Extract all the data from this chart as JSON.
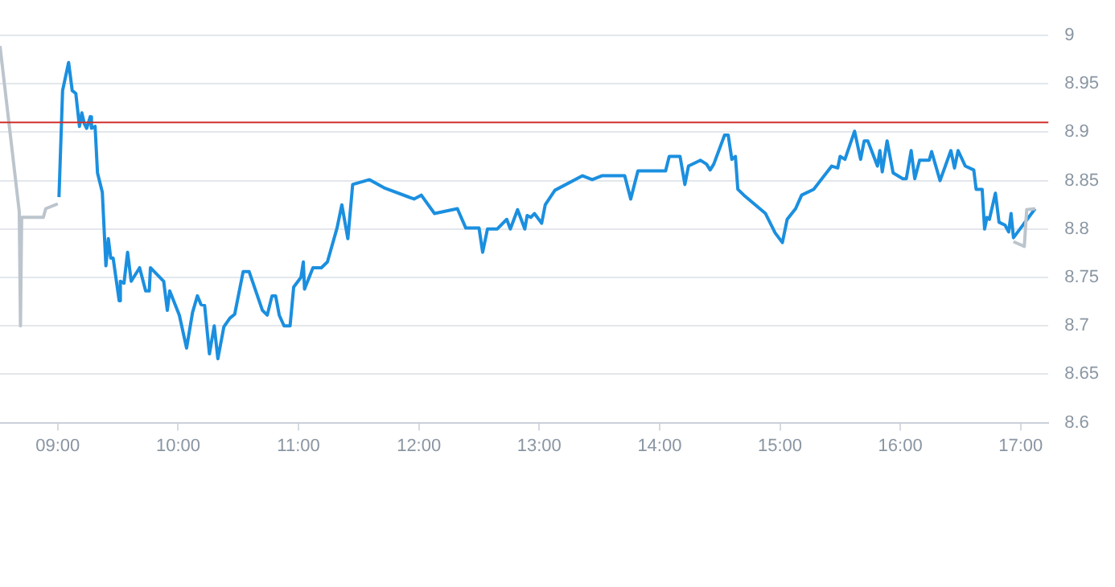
{
  "chart_data": {
    "type": "line",
    "xlim": [
      8.52,
      17.23
    ],
    "ylim": [
      8.6,
      9
    ],
    "xticks": [
      {
        "value": 9,
        "label": "09:00"
      },
      {
        "value": 10,
        "label": "10:00"
      },
      {
        "value": 11,
        "label": "11:00"
      },
      {
        "value": 12,
        "label": "12:00"
      },
      {
        "value": 13,
        "label": "13:00"
      },
      {
        "value": 14,
        "label": "14:00"
      },
      {
        "value": 15,
        "label": "15:00"
      },
      {
        "value": 16,
        "label": "16:00"
      },
      {
        "value": 17,
        "label": "17:00"
      }
    ],
    "yticks": [
      8.6,
      8.65,
      8.7,
      8.75,
      8.8,
      8.85,
      8.9,
      8.95,
      9
    ],
    "grid": "y",
    "legend": false,
    "marker": "none",
    "line_style": "solid",
    "ref_lines": [
      {
        "axis": "y",
        "value": 8.91,
        "color": "#d0312d"
      }
    ],
    "series": [
      {
        "color": "#bcc5cd",
        "x": [
          8.52,
          8.68,
          8.69,
          8.7,
          8.88,
          8.9,
          9.0,
          9.01,
          16.94,
          17.03,
          17.05,
          17.12
        ],
        "values": [
          8.989,
          8.818,
          8.7,
          8.812,
          8.812,
          8.821,
          8.826,
          null,
          8.787,
          8.782,
          8.82,
          8.821
        ]
      },
      {
        "color": "#1b8fdf",
        "x": [
          9.01,
          9.04,
          9.09,
          9.12,
          9.15,
          9.18,
          9.2,
          9.22,
          9.24,
          9.27,
          9.28,
          9.31,
          9.33,
          9.37,
          9.4,
          9.42,
          9.44,
          9.46,
          9.51,
          9.52,
          9.55,
          9.58,
          9.61,
          9.68,
          9.73,
          9.76,
          9.77,
          9.88,
          9.91,
          9.93,
          10.01,
          10.07,
          10.12,
          10.16,
          10.19,
          10.22,
          10.26,
          10.3,
          10.33,
          10.38,
          10.43,
          10.47,
          10.54,
          10.59,
          10.7,
          10.74,
          10.78,
          10.81,
          10.84,
          10.88,
          10.93,
          10.96,
          11.02,
          11.04,
          11.05,
          11.12,
          11.19,
          11.24,
          11.32,
          11.36,
          11.41,
          11.45,
          11.59,
          11.72,
          11.96,
          12.02,
          12.13,
          12.32,
          12.39,
          12.5,
          12.53,
          12.57,
          12.65,
          12.73,
          12.76,
          12.82,
          12.88,
          12.9,
          12.93,
          12.96,
          13.02,
          13.05,
          13.13,
          13.36,
          13.44,
          13.52,
          13.71,
          13.76,
          13.82,
          14.05,
          14.08,
          14.17,
          14.21,
          14.24,
          14.34,
          14.39,
          14.42,
          14.45,
          14.54,
          14.57,
          14.6,
          14.63,
          14.65,
          14.7,
          14.88,
          14.96,
          15.02,
          15.06,
          15.13,
          15.18,
          15.28,
          15.43,
          15.48,
          15.5,
          15.54,
          15.62,
          15.67,
          15.7,
          15.73,
          15.81,
          15.83,
          15.85,
          15.89,
          15.94,
          16.02,
          16.05,
          16.09,
          16.12,
          16.16,
          16.24,
          16.26,
          16.33,
          16.42,
          16.45,
          16.48,
          16.54,
          16.61,
          16.63,
          16.68,
          16.7,
          16.72,
          16.74,
          16.79,
          16.82,
          16.87,
          16.9,
          16.92,
          16.94,
          17.12
        ],
        "values": [
          8.833,
          8.943,
          8.972,
          8.943,
          8.94,
          8.906,
          8.92,
          8.909,
          8.904,
          8.916,
          8.904,
          8.906,
          8.858,
          8.838,
          8.762,
          8.79,
          8.77,
          8.77,
          8.726,
          8.746,
          8.744,
          8.776,
          8.746,
          8.76,
          8.736,
          8.736,
          8.76,
          8.746,
          8.716,
          8.736,
          8.711,
          8.677,
          8.714,
          8.731,
          8.722,
          8.721,
          8.671,
          8.7,
          8.666,
          8.699,
          8.708,
          8.712,
          8.756,
          8.756,
          8.716,
          8.711,
          8.731,
          8.731,
          8.711,
          8.7,
          8.7,
          8.74,
          8.75,
          8.766,
          8.738,
          8.76,
          8.76,
          8.766,
          8.801,
          8.825,
          8.79,
          8.846,
          8.851,
          8.842,
          8.831,
          8.835,
          8.816,
          8.821,
          8.801,
          8.801,
          8.776,
          8.8,
          8.8,
          8.81,
          8.8,
          8.82,
          8.8,
          8.814,
          8.812,
          8.816,
          8.806,
          8.825,
          8.84,
          8.855,
          8.851,
          8.855,
          8.855,
          8.831,
          8.86,
          8.86,
          8.875,
          8.875,
          8.846,
          8.865,
          8.871,
          8.867,
          8.861,
          8.867,
          8.897,
          8.897,
          8.872,
          8.875,
          8.841,
          8.835,
          8.816,
          8.796,
          8.786,
          8.81,
          8.821,
          8.835,
          8.841,
          8.865,
          8.863,
          8.875,
          8.872,
          8.901,
          8.872,
          8.891,
          8.891,
          8.865,
          8.881,
          8.859,
          8.891,
          8.858,
          8.852,
          8.852,
          8.881,
          8.852,
          8.871,
          8.871,
          8.88,
          8.85,
          8.881,
          8.863,
          8.881,
          8.865,
          8.861,
          8.841,
          8.841,
          8.8,
          8.812,
          8.81,
          8.837,
          8.807,
          8.804,
          8.797,
          8.816,
          8.791,
          8.821
        ]
      }
    ]
  }
}
